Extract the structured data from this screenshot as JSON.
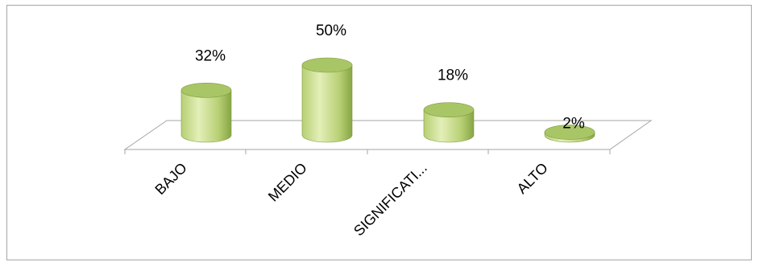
{
  "chart_data": {
    "type": "bar",
    "style": "3d-cylinder",
    "categories": [
      "BAJO",
      "MEDIO",
      "SIGNIFICATI...",
      "ALTO"
    ],
    "values": [
      32,
      50,
      18,
      2
    ],
    "data_labels": [
      "32%",
      "50%",
      "18%",
      "2%"
    ],
    "unit": "%",
    "ylim": [
      0,
      50
    ],
    "grid": false,
    "legend": "none",
    "colors": {
      "bar_light": "#e3efb8",
      "bar_mid": "#b7cf73",
      "bar_dark": "#86a545",
      "bar_top": "#a9c667",
      "floor_line": "#a6a6a6"
    }
  }
}
